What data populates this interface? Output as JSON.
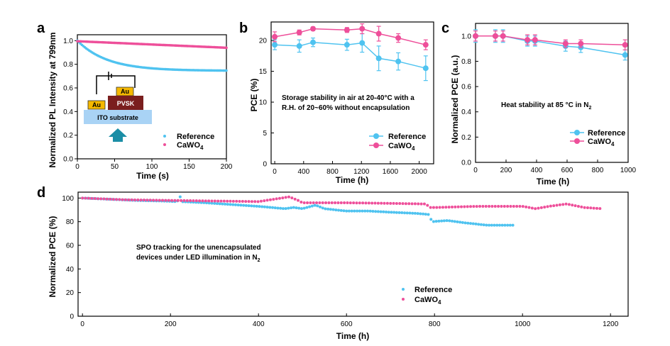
{
  "colors": {
    "reference": "#4fc3f0",
    "cawo4": "#ee4f9a",
    "au": "#f5b800",
    "pvsk": "#7a1e1e",
    "ito": "#a9d3f5",
    "arrow": "#1b8ea6"
  },
  "chart_data": [
    {
      "panel": "a",
      "type": "scatter",
      "xlabel": "Time (s)",
      "ylabel": "Normalized PL Intensity at 799nm",
      "xlim": [
        0,
        200
      ],
      "ylim": [
        0,
        1.05
      ],
      "xticks": [
        "0",
        "50",
        "100",
        "150",
        "200"
      ],
      "yticks": [
        "0.0",
        "0.2",
        "0.4",
        "0.6",
        "0.8",
        "1.0"
      ],
      "series": [
        {
          "name": "Reference",
          "color": "#4fc3f0",
          "model": "decay",
          "y0": 1.0,
          "yinf": 0.745,
          "tau": 40,
          "n": 100
        },
        {
          "name": "CaWO",
          "color": "#ee4f9a",
          "model": "linear",
          "y0": 0.995,
          "y1": 0.94,
          "n": 100
        }
      ],
      "inset": {
        "au_left": "Au",
        "au_right": "Au",
        "pvsk": "PVSK",
        "ito": "ITO substrate"
      }
    },
    {
      "panel": "b",
      "type": "line",
      "xlabel": "Time (h)",
      "ylabel": "PCE (%)",
      "xlim": [
        -50,
        2200
      ],
      "ylim": [
        0,
        23
      ],
      "xticks": [
        "0",
        "400",
        "800",
        "1200",
        "1600",
        "2000"
      ],
      "yticks": [
        "0",
        "5",
        "10",
        "15",
        "20"
      ],
      "annotation": [
        "Storage stability in air at 20-40°C with a",
        "R.H. of 20~60% without encapsulation"
      ],
      "series": [
        {
          "name": "Reference",
          "color": "#4fc3f0",
          "x": [
            0,
            340,
            530,
            1000,
            1210,
            1440,
            1710,
            2090
          ],
          "y": [
            19.3,
            19.1,
            19.7,
            19.3,
            19.6,
            17.1,
            16.6,
            15.5
          ],
          "err": [
            0.8,
            1.0,
            0.7,
            0.9,
            1.5,
            2.0,
            1.4,
            2.0
          ]
        },
        {
          "name": "CaWO",
          "color": "#ee4f9a",
          "x": [
            0,
            340,
            530,
            1000,
            1210,
            1440,
            1710,
            2090
          ],
          "y": [
            20.6,
            21.3,
            21.9,
            21.7,
            21.9,
            21.1,
            20.4,
            19.3
          ],
          "err": [
            0.8,
            0.4,
            0.3,
            0.4,
            0.8,
            1.2,
            0.7,
            0.8
          ]
        }
      ]
    },
    {
      "panel": "c",
      "type": "line",
      "xlabel": "Time (h)",
      "ylabel": "Normalized PCE (a.u.)",
      "xlim": [
        0,
        1000
      ],
      "ylim": [
        0,
        1.1
      ],
      "xticks": [
        "0",
        "200",
        "400",
        "600",
        "800",
        "1000"
      ],
      "yticks": [
        "0.0",
        "0.2",
        "0.4",
        "0.6",
        "0.8",
        "1.0"
      ],
      "annotation": "Heat stability at 85 °C in N",
      "series": [
        {
          "name": "Reference",
          "color": "#4fc3f0",
          "x": [
            0,
            130,
            180,
            340,
            390,
            590,
            690,
            980
          ],
          "y": [
            1.0,
            1.0,
            1.0,
            0.96,
            0.96,
            0.92,
            0.91,
            0.85
          ],
          "err": [
            0.05,
            0.05,
            0.05,
            0.04,
            0.04,
            0.04,
            0.04,
            0.04
          ]
        },
        {
          "name": "CaWO",
          "color": "#ee4f9a",
          "x": [
            0,
            130,
            180,
            340,
            390,
            590,
            690,
            980
          ],
          "y": [
            1.0,
            1.0,
            1.0,
            0.97,
            0.97,
            0.94,
            0.94,
            0.93
          ],
          "err": [
            0.04,
            0.04,
            0.04,
            0.04,
            0.04,
            0.03,
            0.03,
            0.04
          ]
        }
      ]
    },
    {
      "panel": "d",
      "type": "scatter",
      "xlabel": "Time (h)",
      "ylabel": "Normalized PCE (%)",
      "xlim": [
        -10,
        1240
      ],
      "ylim": [
        0,
        105
      ],
      "xticks": [
        "0",
        "200",
        "400",
        "600",
        "800",
        "1000",
        "1200"
      ],
      "yticks": [
        "0",
        "20",
        "40",
        "60",
        "80",
        "100"
      ],
      "annotation": [
        "SPO tracking for the unencapsulated",
        "devices under LED illumination in N"
      ],
      "series": [
        {
          "name": "Reference",
          "color": "#4fc3f0",
          "step": 6,
          "points": [
            [
              0,
              100
            ],
            [
              60,
              99
            ],
            [
              120,
              98
            ],
            [
              180,
              97.5
            ],
            [
              215,
              97
            ],
            [
              222,
              101
            ],
            [
              224,
              97
            ],
            [
              280,
              96
            ],
            [
              320,
              95
            ],
            [
              400,
              93
            ],
            [
              460,
              91
            ],
            [
              480,
              92
            ],
            [
              500,
              91
            ],
            [
              530,
              94
            ],
            [
              550,
              91
            ],
            [
              600,
              89
            ],
            [
              650,
              89
            ],
            [
              700,
              88
            ],
            [
              760,
              87
            ],
            [
              790,
              86
            ],
            [
              793,
              80
            ],
            [
              830,
              81
            ],
            [
              870,
              79
            ],
            [
              920,
              77
            ],
            [
              960,
              77
            ],
            [
              980,
              77
            ]
          ]
        },
        {
          "name": "CaWO",
          "color": "#ee4f9a",
          "step": 7,
          "points": [
            [
              0,
              100
            ],
            [
              100,
              98.5
            ],
            [
              200,
              98
            ],
            [
              300,
              97.5
            ],
            [
              400,
              97
            ],
            [
              470,
              101
            ],
            [
              490,
              98
            ],
            [
              500,
              96
            ],
            [
              600,
              96
            ],
            [
              700,
              95.5
            ],
            [
              780,
              95
            ],
            [
              790,
              92
            ],
            [
              800,
              92
            ],
            [
              900,
              93
            ],
            [
              1000,
              93
            ],
            [
              1030,
              91
            ],
            [
              1060,
              93
            ],
            [
              1100,
              95
            ],
            [
              1140,
              92
            ],
            [
              1180,
              91
            ]
          ]
        }
      ]
    }
  ],
  "legend": {
    "reference": "Reference",
    "cawo_base": "CaWO",
    "cawo_sub": "4"
  },
  "panel_labels": {
    "a": "a",
    "b": "b",
    "c": "c",
    "d": "d"
  },
  "subscripts": {
    "n2": "2"
  }
}
